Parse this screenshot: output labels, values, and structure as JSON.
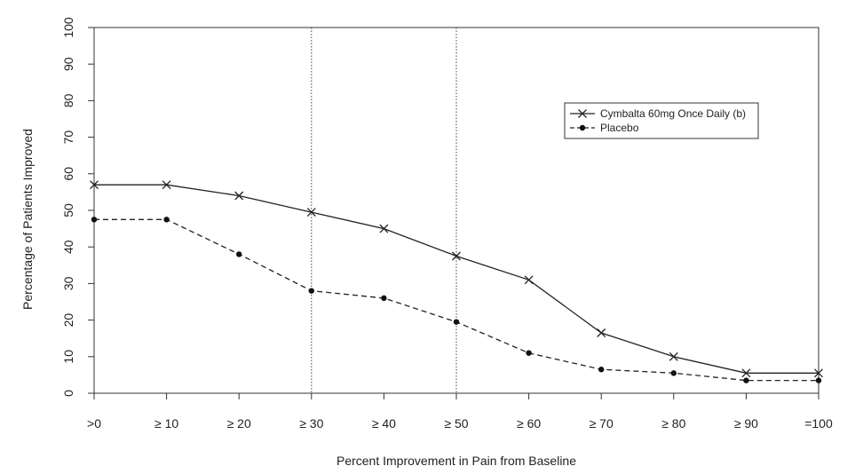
{
  "chart_data": {
    "type": "line",
    "title": "",
    "xlabel": "Percent Improvement in Pain from Baseline",
    "ylabel": "Percentage of Patients Improved",
    "categories": [
      ">0",
      "≥ 10",
      "≥ 20",
      "≥ 30",
      "≥ 40",
      "≥ 50",
      "≥ 60",
      "≥ 70",
      "≥ 80",
      "≥ 90",
      "=100"
    ],
    "ylim": [
      0,
      100
    ],
    "yticks": [
      0,
      10,
      20,
      30,
      40,
      50,
      60,
      70,
      80,
      90,
      100
    ],
    "reference_lines_at": [
      "≥ 30",
      "≥ 50"
    ],
    "legend_position": "top-right",
    "grid": false,
    "series": [
      {
        "name": "Cymbalta 60mg Once Daily (b)",
        "marker": "x",
        "line_style": "solid",
        "values": [
          57,
          57,
          54,
          49.5,
          45,
          37.5,
          31,
          16.5,
          10,
          5.5,
          5.5
        ]
      },
      {
        "name": "Placebo",
        "marker": "dot",
        "line_style": "dashed",
        "values": [
          47.5,
          47.5,
          38,
          28,
          26,
          19.5,
          11,
          6.5,
          5.5,
          3.5,
          3.5
        ]
      }
    ]
  }
}
